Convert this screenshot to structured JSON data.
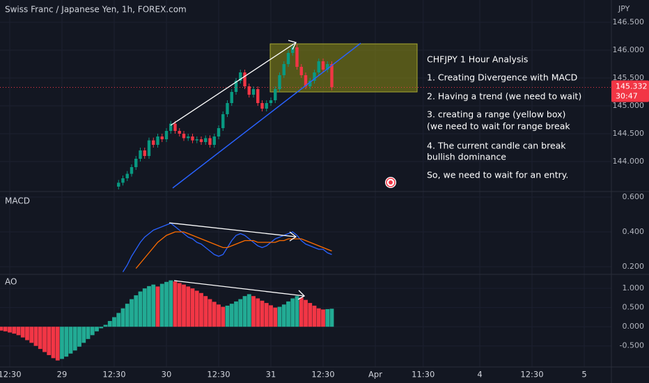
{
  "chart_data": [
    {
      "type": "candlestick",
      "title": "Swiss Franc / Japanese Yen, 1h, FOREX.com",
      "y_axis_label": "JPY",
      "countdown": "30:47",
      "up_color": "#089981",
      "down_color": "#f23645",
      "x": [
        25,
        26,
        27,
        28,
        29,
        30,
        31,
        32,
        33,
        34,
        35,
        36,
        37,
        38,
        39,
        40,
        41,
        42,
        43,
        44,
        45,
        46,
        47,
        48,
        49,
        50,
        51,
        52,
        53,
        54,
        55,
        56,
        57,
        58,
        59,
        60,
        61,
        62,
        63,
        64,
        65,
        66,
        67,
        68,
        69,
        70,
        71,
        72,
        73,
        74
      ],
      "open": [
        143.55,
        143.62,
        143.7,
        143.78,
        143.9,
        144.05,
        144.2,
        144.1,
        144.38,
        144.3,
        144.45,
        144.4,
        144.55,
        144.68,
        144.55,
        144.5,
        144.42,
        144.45,
        144.38,
        144.4,
        144.35,
        144.42,
        144.3,
        144.45,
        144.6,
        144.85,
        145.05,
        145.25,
        145.45,
        145.6,
        145.35,
        145.2,
        145.3,
        145.05,
        144.95,
        145.05,
        145.1,
        145.3,
        145.55,
        145.75,
        145.95,
        146.05,
        145.7,
        145.55,
        145.35,
        145.45,
        145.6,
        145.8,
        145.65,
        145.75
      ],
      "high": [
        143.67,
        143.75,
        143.83,
        143.95,
        144.1,
        144.25,
        144.25,
        144.43,
        144.43,
        144.5,
        144.5,
        144.6,
        144.73,
        144.73,
        144.6,
        144.55,
        144.5,
        144.5,
        144.45,
        144.45,
        144.47,
        144.47,
        144.5,
        144.65,
        144.9,
        145.1,
        145.3,
        145.5,
        145.65,
        145.65,
        145.4,
        145.35,
        145.35,
        145.1,
        145.1,
        145.15,
        145.35,
        145.6,
        145.8,
        146.0,
        146.1,
        146.1,
        145.75,
        145.6,
        145.5,
        145.65,
        145.85,
        145.85,
        145.8,
        145.8
      ],
      "low": [
        143.5,
        143.57,
        143.65,
        143.73,
        143.85,
        144.0,
        144.05,
        144.05,
        144.25,
        144.25,
        144.35,
        144.35,
        144.5,
        144.5,
        144.45,
        144.37,
        144.37,
        144.33,
        144.33,
        144.3,
        144.3,
        144.25,
        144.25,
        144.4,
        144.55,
        144.8,
        145.0,
        145.2,
        145.4,
        145.3,
        145.15,
        145.15,
        145.0,
        144.9,
        144.9,
        145.0,
        145.05,
        145.25,
        145.5,
        145.7,
        145.9,
        145.65,
        145.5,
        145.3,
        145.3,
        145.4,
        145.55,
        145.6,
        145.6,
        145.28
      ],
      "close": [
        143.62,
        143.7,
        143.78,
        143.9,
        144.05,
        144.2,
        144.1,
        144.38,
        144.3,
        144.45,
        144.4,
        144.55,
        144.68,
        144.55,
        144.5,
        144.42,
        144.45,
        144.38,
        144.4,
        144.35,
        144.42,
        144.3,
        144.45,
        144.6,
        144.85,
        145.05,
        145.25,
        145.45,
        145.6,
        145.35,
        145.2,
        145.3,
        145.05,
        144.95,
        145.05,
        145.1,
        145.3,
        145.55,
        145.75,
        145.95,
        146.05,
        145.7,
        145.55,
        145.35,
        145.45,
        145.6,
        145.8,
        145.65,
        145.75,
        145.332
      ],
      "ylim": [
        143.5,
        146.9
      ],
      "yticks": [
        {
          "value": 144,
          "label": "144.000"
        },
        {
          "value": 144.5,
          "label": "144.500"
        },
        {
          "value": 145,
          "label": "145.000"
        },
        {
          "value": 145.5,
          "label": "145.500"
        },
        {
          "value": 146,
          "label": "146.000"
        },
        {
          "value": 146.5,
          "label": "146.500"
        }
      ],
      "annotation": {
        "lines": [
          "CHFJPY 1 Hour Analysis",
          "1. Creating Divergence with MACD",
          "2. Having a trend (we need to wait)",
          "3. creating a range (yellow box)",
          "(we need to wait for range break",
          "4. The current candle can break",
          "bullish dominance",
          "So, we need to wait for an entry."
        ]
      }
    },
    {
      "type": "line",
      "title": "MACD",
      "x": [
        26,
        27,
        28,
        29,
        30,
        31,
        32,
        33,
        34,
        35,
        36,
        37,
        38,
        39,
        40,
        41,
        42,
        43,
        44,
        45,
        46,
        47,
        48,
        49,
        50,
        51,
        52,
        53,
        54,
        55,
        56,
        57,
        58,
        59,
        60,
        61,
        62,
        63,
        64,
        65,
        66,
        67,
        68,
        69,
        70,
        71,
        72,
        73,
        74
      ],
      "series": [
        {
          "color": "#2962ff",
          "values": [
            0.17,
            0.21,
            0.26,
            0.3,
            0.34,
            0.37,
            0.39,
            0.41,
            0.42,
            0.43,
            0.44,
            0.45,
            0.43,
            0.41,
            0.39,
            0.37,
            0.36,
            0.34,
            0.33,
            0.31,
            0.29,
            0.27,
            0.26,
            0.27,
            0.31,
            0.35,
            0.38,
            0.39,
            0.38,
            0.36,
            0.34,
            0.32,
            0.31,
            0.32,
            0.34,
            0.36,
            0.37,
            0.38,
            0.39,
            0.4,
            0.38,
            0.35,
            0.33,
            0.32,
            0.31,
            0.3,
            0.3,
            0.28,
            0.27
          ]
        },
        {
          "color": "#ff6d00",
          "values": [
            null,
            null,
            null,
            0.19,
            0.22,
            0.25,
            0.28,
            0.31,
            0.34,
            0.36,
            0.38,
            0.39,
            0.4,
            0.4,
            0.4,
            0.39,
            0.38,
            0.37,
            0.36,
            0.35,
            0.34,
            0.33,
            0.32,
            0.31,
            0.31,
            0.32,
            0.33,
            0.34,
            0.35,
            0.35,
            0.35,
            0.34,
            0.34,
            0.34,
            0.34,
            0.34,
            0.35,
            0.35,
            0.36,
            0.36,
            0.36,
            0.36,
            0.35,
            0.34,
            0.33,
            0.32,
            0.31,
            0.3,
            0.29
          ]
        }
      ],
      "ylim": [
        0.16,
        0.62
      ],
      "yticks": [
        {
          "value": 0.2,
          "label": "0.200"
        },
        {
          "value": 0.4,
          "label": "0.400"
        },
        {
          "value": 0.6,
          "label": "0.600"
        }
      ]
    },
    {
      "type": "bar",
      "title": "AO",
      "up_color": "#22ab94",
      "down_color": "#f23645",
      "x": [
        -2,
        -1,
        0,
        1,
        2,
        3,
        4,
        5,
        6,
        7,
        8,
        9,
        10,
        11,
        12,
        13,
        14,
        15,
        16,
        17,
        18,
        19,
        20,
        21,
        22,
        23,
        24,
        25,
        26,
        27,
        28,
        29,
        30,
        31,
        32,
        33,
        34,
        35,
        36,
        37,
        38,
        39,
        40,
        41,
        42,
        43,
        44,
        45,
        46,
        47,
        48,
        49,
        50,
        51,
        52,
        53,
        54,
        55,
        56,
        57,
        58,
        59,
        60,
        61,
        62,
        63,
        64,
        65,
        66,
        67,
        68,
        69,
        70,
        71,
        72,
        73,
        74
      ],
      "values": [
        -0.1,
        -0.12,
        -0.15,
        -0.18,
        -0.22,
        -0.28,
        -0.35,
        -0.42,
        -0.5,
        -0.58,
        -0.66,
        -0.74,
        -0.82,
        -0.88,
        -0.84,
        -0.78,
        -0.7,
        -0.62,
        -0.52,
        -0.42,
        -0.32,
        -0.22,
        -0.12,
        -0.04,
        0.05,
        0.15,
        0.25,
        0.36,
        0.48,
        0.6,
        0.72,
        0.82,
        0.92,
        1.0,
        1.06,
        1.1,
        1.05,
        1.12,
        1.17,
        1.21,
        1.18,
        1.14,
        1.1,
        1.05,
        1.0,
        0.94,
        0.88,
        0.8,
        0.72,
        0.65,
        0.58,
        0.52,
        0.55,
        0.6,
        0.66,
        0.72,
        0.8,
        0.85,
        0.8,
        0.74,
        0.68,
        0.62,
        0.56,
        0.5,
        0.52,
        0.58,
        0.66,
        0.74,
        0.8,
        0.76,
        0.7,
        0.62,
        0.55,
        0.48,
        0.45,
        0.46,
        0.47
      ],
      "ylim": [
        -1.05,
        1.33
      ],
      "yticks": [
        {
          "value": -0.5,
          "label": "-0.500"
        },
        {
          "value": 0,
          "label": "0.000"
        },
        {
          "value": 0.5,
          "label": "0.500"
        },
        {
          "value": 1,
          "label": "1.000"
        }
      ],
      "xlim": [
        -2.24,
        138.24
      ],
      "xticks": [
        {
          "value": 0,
          "label": "12:30"
        },
        {
          "value": 12,
          "label": "29"
        },
        {
          "value": 24,
          "label": "12:30"
        },
        {
          "value": 36,
          "label": "30"
        },
        {
          "value": 48,
          "label": "12:30"
        },
        {
          "value": 60,
          "label": "31"
        },
        {
          "value": 72,
          "label": "12:30"
        },
        {
          "value": 84,
          "label": "Apr"
        },
        {
          "value": 95,
          "label": "11:30"
        },
        {
          "value": 108,
          "label": "4"
        },
        {
          "value": 120,
          "label": "12:30"
        },
        {
          "value": 132,
          "label": "5"
        }
      ],
      "grid": true
    }
  ]
}
